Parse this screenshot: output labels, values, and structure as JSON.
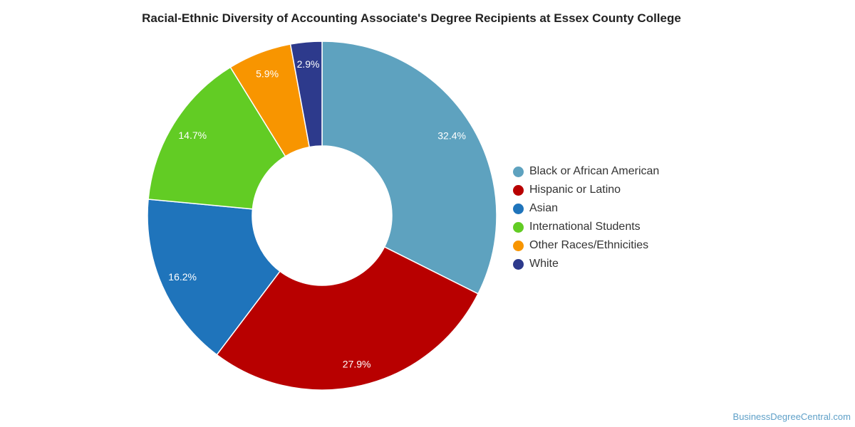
{
  "chart_data": {
    "type": "pie",
    "title": "Racial-Ethnic Diversity of Accounting Associate's Degree Recipients at Essex County College",
    "legend_position": "right",
    "slices": [
      {
        "label": "Black or African American",
        "value": 32.4,
        "display": "32.4%",
        "color": "#5ea2bf"
      },
      {
        "label": "Hispanic or Latino",
        "value": 27.9,
        "display": "27.9%",
        "color": "#b80000"
      },
      {
        "label": "Asian",
        "value": 16.2,
        "display": "16.2%",
        "color": "#1f74bb"
      },
      {
        "label": "International Students",
        "value": 14.7,
        "display": "14.7%",
        "color": "#62cc24"
      },
      {
        "label": "Other Races/Ethnicities",
        "value": 5.9,
        "display": "5.9%",
        "color": "#f89500"
      },
      {
        "label": "White",
        "value": 2.9,
        "display": "2.9%",
        "color": "#2d3a8c"
      }
    ]
  },
  "credit": "BusinessDegreeCentral.com"
}
